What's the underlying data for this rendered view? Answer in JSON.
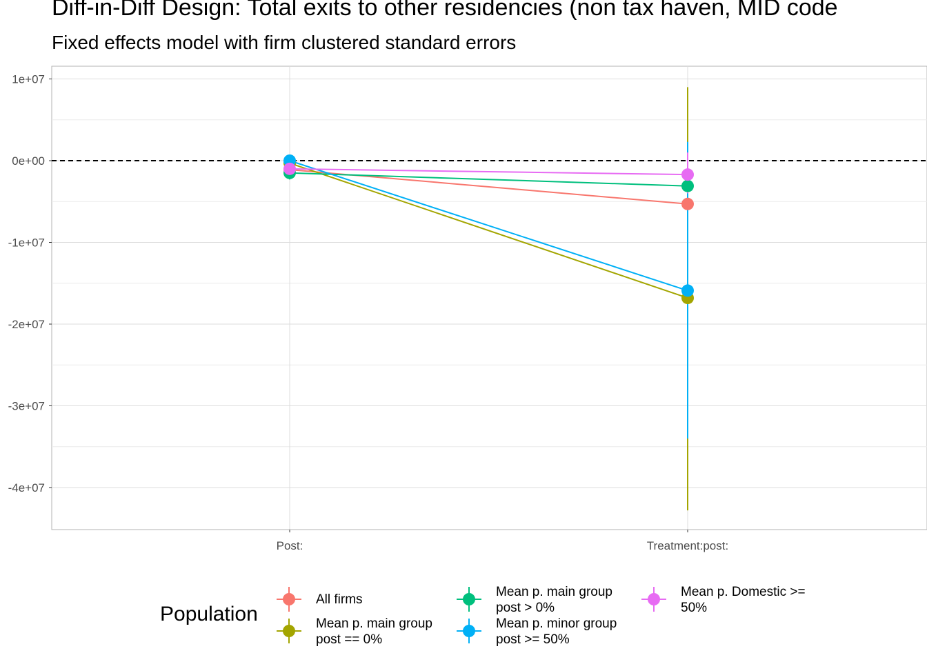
{
  "chart_data": {
    "type": "scatter",
    "title": "Diff-in-Diff Design: Total exits to other residencies (non tax haven, MID code",
    "subtitle": "Fixed effects model with firm clustered standard errors",
    "xlabel": "",
    "ylabel": "",
    "categories": [
      "Post:",
      "Treatment:post:"
    ],
    "ylim": [
      -45000000,
      11500000
    ],
    "y_ticks": [
      10000000,
      0,
      -10000000,
      -20000000,
      -30000000,
      -40000000
    ],
    "y_tick_labels": [
      "1e+07",
      "0e+00",
      "-1e+07",
      "-2e+07",
      "-3e+07",
      "-4e+07"
    ],
    "reference_line": 0,
    "grid": true,
    "legend": {
      "title": "Population",
      "placement": "bottom"
    },
    "series": [
      {
        "name": "All firms",
        "color": "#F8766D",
        "values": [
          -1100000,
          -5300000
        ],
        "ci_low": [
          -1600000,
          -5300000
        ],
        "ci_high": [
          -600000,
          -5300000
        ]
      },
      {
        "name": "Mean p. main group\npost == 0%",
        "color": "#A3A500",
        "values": [
          -300000,
          -16800000
        ],
        "ci_low": [
          -800000,
          -42800000
        ],
        "ci_high": [
          200000,
          9000000
        ]
      },
      {
        "name": "Mean p. main group\npost > 0%",
        "color": "#00BF7D",
        "values": [
          -1500000,
          -3100000
        ],
        "ci_low": [
          -2300000,
          -3100000
        ],
        "ci_high": [
          -700000,
          -3100000
        ]
      },
      {
        "name": "Mean p. minor group\npost >= 50%",
        "color": "#00B0F6",
        "values": [
          0,
          -15900000
        ],
        "ci_low": [
          -400000,
          -34000000
        ],
        "ci_high": [
          400000,
          2300000
        ]
      },
      {
        "name": "Mean p. Domestic >=\n50%",
        "color": "#E76BF3",
        "values": [
          -1000000,
          -1700000
        ],
        "ci_low": [
          -1500000,
          -4000000
        ],
        "ci_high": [
          -500000,
          1000000
        ]
      }
    ]
  }
}
